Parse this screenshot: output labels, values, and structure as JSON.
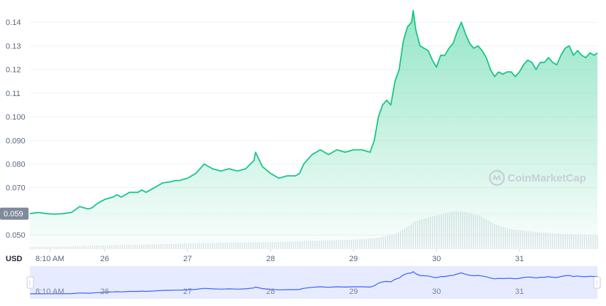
{
  "colors": {
    "line": "#16c784",
    "area_top": "#16c784",
    "volume": "#e3e6ec",
    "navigator_line": "#3861fb",
    "navigator_bg": "#e6ebff",
    "grid": "#eff2f5",
    "badge": "#808a9d",
    "text": "#58667e"
  },
  "watermark": {
    "text": "CoinMarketCap",
    "icon": "coinmarketcap-logo-icon"
  },
  "current_price_badge": "0.059",
  "unit_label": "USD",
  "nav_handle_glyph": "⁞",
  "chart_data": {
    "type": "area",
    "title": "",
    "xlabel": "",
    "ylabel": "USD",
    "ylim": [
      0.044,
      0.147
    ],
    "yticks": [
      0.05,
      0.059,
      0.07,
      0.08,
      0.09,
      0.1,
      0.11,
      0.12,
      0.13,
      0.14
    ],
    "ytick_labels": [
      "0.050",
      "0.059",
      "0.070",
      "0.080",
      "0.090",
      "0.100",
      "0.11",
      "0.12",
      "0.13",
      "0.14"
    ],
    "xticks": [
      {
        "day": 25.34,
        "label": "8:10 AM"
      },
      {
        "day": 26,
        "label": "26"
      },
      {
        "day": 27,
        "label": "27"
      },
      {
        "day": 28,
        "label": "28"
      },
      {
        "day": 29,
        "label": "29"
      },
      {
        "day": 30,
        "label": "30"
      },
      {
        "day": 31,
        "label": "31"
      }
    ],
    "xlim": [
      25.1,
      31.94
    ],
    "grid": true,
    "series": [
      {
        "kind": "price",
        "x": [
          25.1,
          25.2,
          25.3,
          25.4,
          25.5,
          25.6,
          25.7,
          25.8,
          25.85,
          25.9,
          26.0,
          26.1,
          26.15,
          26.2,
          26.3,
          26.4,
          26.45,
          26.5,
          26.6,
          26.7,
          26.8,
          26.85,
          26.9,
          27.0,
          27.1,
          27.2,
          27.3,
          27.4,
          27.5,
          27.6,
          27.7,
          27.8,
          27.82,
          27.9,
          28.0,
          28.1,
          28.2,
          28.3,
          28.35,
          28.4,
          28.5,
          28.6,
          28.7,
          28.8,
          28.9,
          29.0,
          29.1,
          29.2,
          29.25,
          29.3,
          29.35,
          29.4,
          29.45,
          29.5,
          29.55,
          29.6,
          29.65,
          29.7,
          29.72,
          29.75,
          29.8,
          29.85,
          29.9,
          29.95,
          30.0,
          30.05,
          30.1,
          30.15,
          30.2,
          30.25,
          30.3,
          30.35,
          30.4,
          30.45,
          30.5,
          30.55,
          30.6,
          30.65,
          30.7,
          30.75,
          30.8,
          30.85,
          30.9,
          30.95,
          31.0,
          31.05,
          31.1,
          31.15,
          31.2,
          31.25,
          31.3,
          31.35,
          31.4,
          31.45,
          31.5,
          31.55,
          31.6,
          31.65,
          31.7,
          31.75,
          31.8,
          31.85,
          31.9,
          31.94
        ],
        "y": [
          0.059,
          0.0595,
          0.059,
          0.0588,
          0.059,
          0.0595,
          0.062,
          0.061,
          0.0615,
          0.063,
          0.065,
          0.066,
          0.067,
          0.066,
          0.068,
          0.068,
          0.069,
          0.068,
          0.07,
          0.072,
          0.0725,
          0.073,
          0.073,
          0.074,
          0.076,
          0.08,
          0.078,
          0.077,
          0.078,
          0.077,
          0.078,
          0.0815,
          0.085,
          0.079,
          0.076,
          0.074,
          0.075,
          0.075,
          0.076,
          0.08,
          0.084,
          0.086,
          0.084,
          0.086,
          0.085,
          0.086,
          0.086,
          0.085,
          0.09,
          0.1,
          0.105,
          0.107,
          0.105,
          0.115,
          0.12,
          0.132,
          0.138,
          0.14,
          0.145,
          0.137,
          0.13,
          0.129,
          0.128,
          0.124,
          0.121,
          0.126,
          0.126,
          0.129,
          0.131,
          0.136,
          0.14,
          0.135,
          0.131,
          0.129,
          0.13,
          0.128,
          0.125,
          0.12,
          0.117,
          0.119,
          0.118,
          0.119,
          0.119,
          0.117,
          0.119,
          0.122,
          0.124,
          0.123,
          0.12,
          0.123,
          0.123,
          0.125,
          0.123,
          0.122,
          0.126,
          0.129,
          0.13,
          0.126,
          0.128,
          0.126,
          0.125,
          0.127,
          0.126,
          0.127
        ]
      },
      {
        "kind": "volume",
        "x": [
          25.1,
          25.5,
          26.0,
          26.5,
          27.0,
          27.5,
          28.0,
          28.5,
          29.0,
          29.3,
          29.5,
          29.65,
          29.75,
          30.0,
          30.2,
          30.35,
          30.5,
          30.7,
          30.9,
          31.2,
          31.5,
          31.94
        ],
        "rel": [
          0.06,
          0.07,
          0.1,
          0.12,
          0.15,
          0.17,
          0.18,
          0.22,
          0.25,
          0.3,
          0.4,
          0.6,
          0.75,
          0.9,
          1.0,
          0.98,
          0.9,
          0.65,
          0.52,
          0.45,
          0.4,
          0.37
        ]
      }
    ]
  }
}
